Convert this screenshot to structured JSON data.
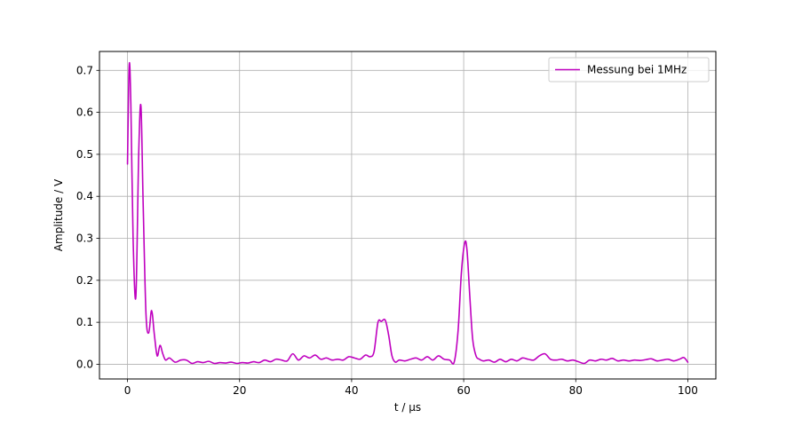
{
  "chart_data": {
    "type": "line",
    "title": "",
    "xlabel": "t / µs",
    "ylabel": "Amplitude / V",
    "xlim": [
      -5,
      105
    ],
    "ylim": [
      -0.035,
      0.745
    ],
    "xticks": [
      0,
      20,
      40,
      60,
      80,
      100
    ],
    "xtick_labels": [
      "0",
      "20",
      "40",
      "60",
      "80",
      "100"
    ],
    "yticks": [
      0.0,
      0.1,
      0.2,
      0.3,
      0.4,
      0.5,
      0.6,
      0.7
    ],
    "ytick_labels": [
      "0.0",
      "0.1",
      "0.2",
      "0.3",
      "0.4",
      "0.5",
      "0.6",
      "0.7"
    ],
    "grid": true,
    "legend_position": "top-right",
    "series": [
      {
        "name": "Messung bei 1MHz",
        "color": "#bf00bf",
        "x": [
          0,
          0.3,
          0.6,
          1.0,
          1.5,
          2.0,
          2.4,
          2.8,
          3.3,
          3.8,
          4.3,
          4.8,
          5.3,
          5.8,
          6.3,
          6.8,
          7.5,
          8.5,
          9.5,
          10.5,
          11.5,
          12.5,
          13.5,
          14.5,
          15.5,
          16.5,
          17.5,
          18.5,
          19.5,
          20.5,
          21.5,
          22.5,
          23.5,
          24.5,
          25.5,
          26.5,
          27.5,
          28.5,
          29.5,
          30.5,
          31.5,
          32.5,
          33.5,
          34.5,
          35.5,
          36.5,
          37.5,
          38.5,
          39.5,
          40.5,
          41.5,
          42.5,
          43.3,
          44.0,
          44.7,
          45.3,
          46.0,
          46.6,
          47.2,
          47.8,
          48.5,
          49.5,
          50.5,
          51.5,
          52.5,
          53.5,
          54.5,
          55.5,
          56.5,
          57.5,
          58.3,
          59.0,
          59.6,
          60.2,
          60.6,
          61.1,
          61.6,
          62.2,
          62.8,
          63.5,
          64.5,
          65.5,
          66.5,
          67.5,
          68.5,
          69.5,
          70.5,
          71.5,
          72.5,
          73.5,
          74.5,
          75.5,
          76.5,
          77.5,
          78.5,
          79.5,
          80.5,
          81.5,
          82.5,
          83.5,
          84.5,
          85.5,
          86.5,
          87.5,
          88.5,
          89.5,
          90.5,
          91.5,
          92.5,
          93.5,
          94.5,
          95.5,
          96.5,
          97.5,
          98.5,
          99.3,
          100
        ],
        "y": [
          0.477,
          0.712,
          0.62,
          0.3,
          0.162,
          0.5,
          0.615,
          0.38,
          0.12,
          0.075,
          0.128,
          0.07,
          0.02,
          0.045,
          0.025,
          0.01,
          0.015,
          0.005,
          0.01,
          0.01,
          0.002,
          0.006,
          0.004,
          0.007,
          0.002,
          0.004,
          0.003,
          0.005,
          0.002,
          0.004,
          0.003,
          0.006,
          0.004,
          0.01,
          0.006,
          0.012,
          0.01,
          0.008,
          0.025,
          0.01,
          0.02,
          0.015,
          0.022,
          0.012,
          0.015,
          0.01,
          0.012,
          0.01,
          0.018,
          0.015,
          0.012,
          0.022,
          0.018,
          0.03,
          0.1,
          0.102,
          0.105,
          0.07,
          0.02,
          0.005,
          0.01,
          0.008,
          0.012,
          0.015,
          0.01,
          0.018,
          0.01,
          0.02,
          0.012,
          0.01,
          0.005,
          0.08,
          0.22,
          0.29,
          0.27,
          0.16,
          0.06,
          0.02,
          0.012,
          0.008,
          0.01,
          0.005,
          0.012,
          0.006,
          0.012,
          0.008,
          0.015,
          0.012,
          0.01,
          0.02,
          0.025,
          0.012,
          0.01,
          0.012,
          0.008,
          0.01,
          0.006,
          0.002,
          0.01,
          0.008,
          0.012,
          0.01,
          0.014,
          0.008,
          0.01,
          0.008,
          0.01,
          0.009,
          0.011,
          0.013,
          0.008,
          0.01,
          0.012,
          0.008,
          0.012,
          0.016,
          0.005
        ]
      }
    ]
  }
}
